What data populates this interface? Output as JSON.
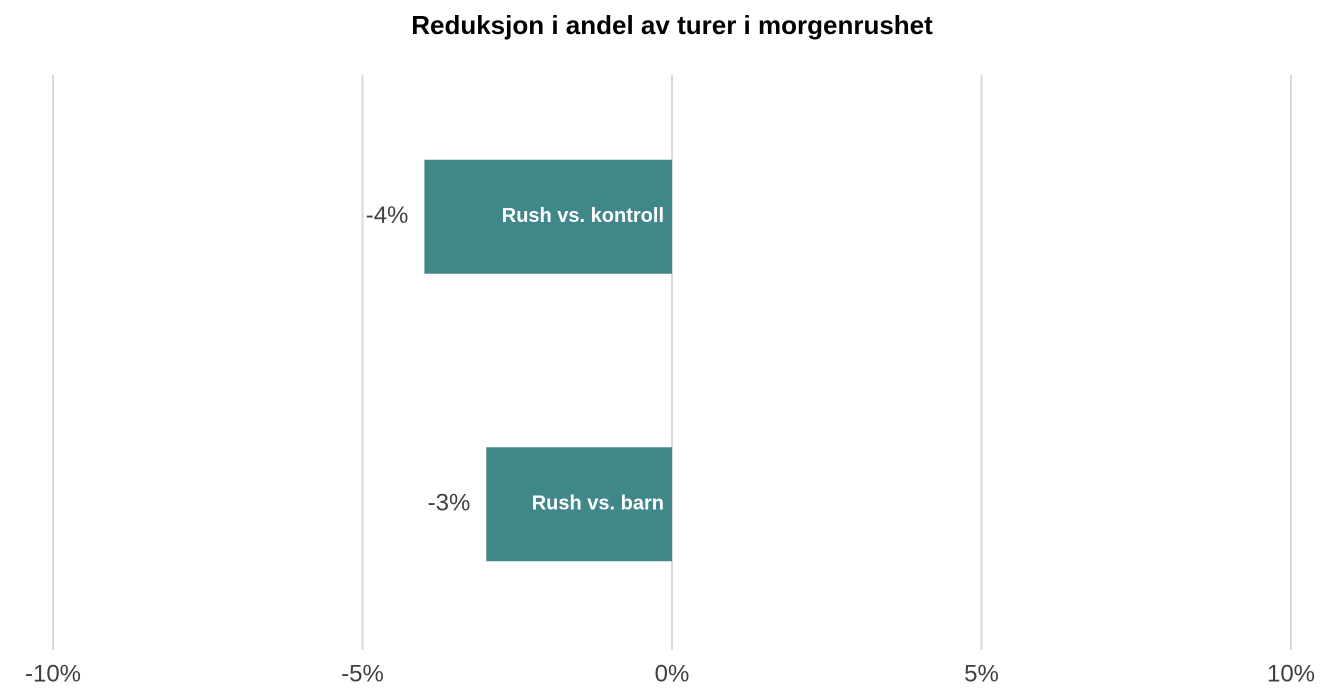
{
  "chart_data": {
    "type": "barh",
    "title": "Reduksjon i andel av turer i morgenrushet",
    "categories": [
      "Rush vs. kontroll",
      "Rush vs. barn"
    ],
    "values": [
      -4,
      -3
    ],
    "value_labels": [
      "-4%",
      "-3%"
    ],
    "color": "#40878a",
    "xlim": [
      -10,
      10
    ],
    "xticks": [
      {
        "value": -10,
        "label": "-10%"
      },
      {
        "value": -5,
        "label": "-5%"
      },
      {
        "value": 0,
        "label": "0%"
      },
      {
        "value": 5,
        "label": "5%"
      },
      {
        "value": 10,
        "label": "10%"
      }
    ],
    "grid": true
  }
}
